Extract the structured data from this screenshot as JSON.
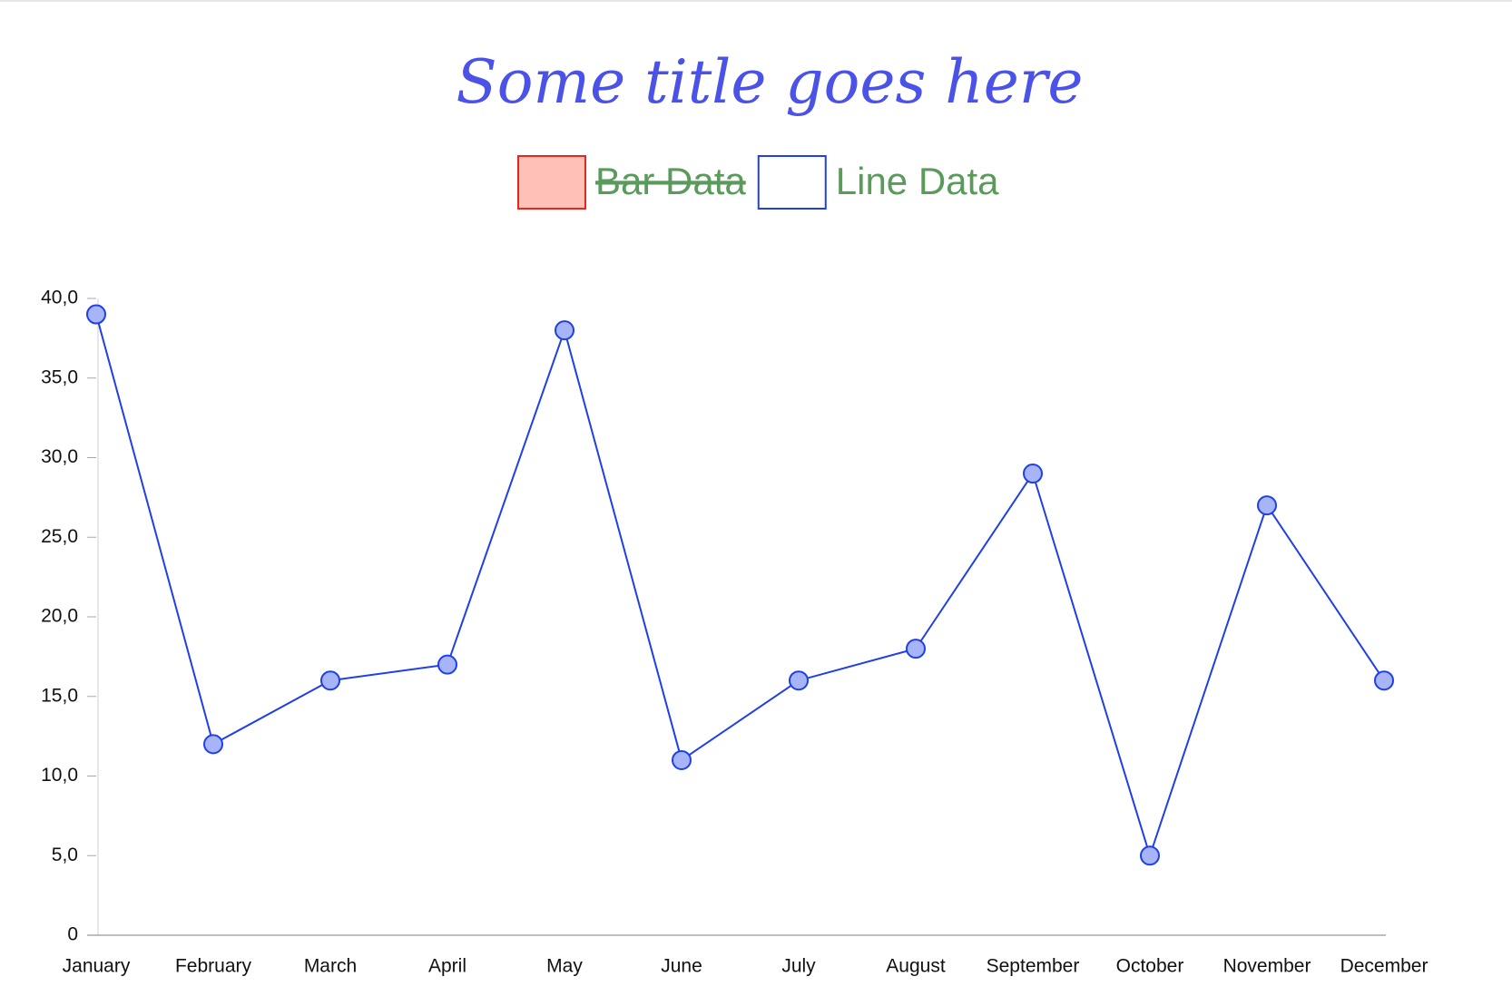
{
  "chart_data": {
    "type": "line",
    "title": "Some title goes here",
    "categories": [
      "January",
      "February",
      "March",
      "April",
      "May",
      "June",
      "July",
      "August",
      "September",
      "October",
      "November",
      "December"
    ],
    "series": [
      {
        "name": "Bar Data",
        "type": "bar",
        "hidden": true,
        "color": "#ffc0b8",
        "border_color": "#e8271a"
      },
      {
        "name": "Line Data",
        "type": "line",
        "color": "#1f3fe8",
        "point_color": "#a8b4f8",
        "values": [
          39,
          12,
          16,
          17,
          38,
          11,
          16,
          18,
          29,
          5,
          27,
          16
        ]
      }
    ],
    "ylim": [
      0,
      40
    ],
    "yticks": [
      0,
      {
        "value": 5,
        "label": "5,0"
      },
      {
        "value": 10,
        "label": "10,0"
      },
      {
        "value": 15,
        "label": "15,0"
      },
      {
        "value": 20,
        "label": "20,0"
      },
      {
        "value": 25,
        "label": "25,0"
      },
      {
        "value": 30,
        "label": "30,0"
      },
      {
        "value": 35,
        "label": "35,0"
      },
      {
        "value": 40,
        "label": "40,0"
      }
    ],
    "grid": false,
    "legend": "top",
    "title_color": "#4a52e8",
    "legend_text_color": "#5a9a5a"
  }
}
